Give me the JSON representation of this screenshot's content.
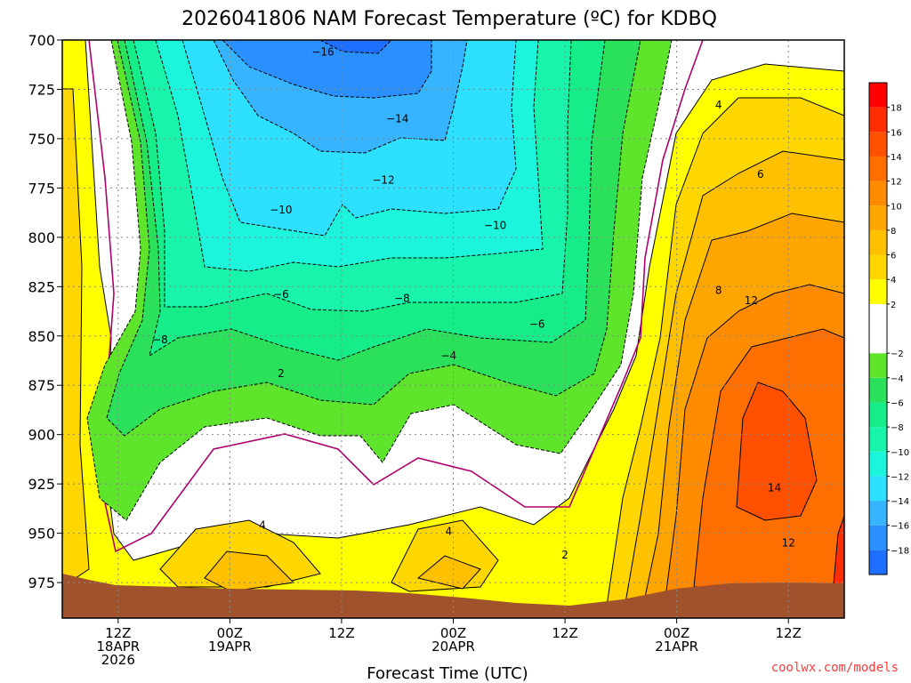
{
  "chart_data": {
    "type": "heatmap",
    "title": "2026041806 NAM Forecast Temperature (ºC) for KDBQ",
    "xlabel": "Forecast Time (UTC)",
    "ylabel": "",
    "credit": "coolwx.com/models",
    "y_axis": {
      "ticks": [
        700,
        725,
        750,
        775,
        800,
        825,
        850,
        875,
        900,
        925,
        950,
        975
      ],
      "ylim": [
        700,
        993
      ],
      "inverted": true,
      "unit": "hPa"
    },
    "x_axis": {
      "ticks": [
        {
          "t": 6,
          "lines": [
            "12Z",
            "18APR",
            "2026"
          ]
        },
        {
          "t": 18,
          "lines": [
            "00Z",
            "19APR"
          ]
        },
        {
          "t": 30,
          "lines": [
            "12Z"
          ]
        },
        {
          "t": 42,
          "lines": [
            "00Z",
            "20APR"
          ]
        },
        {
          "t": 54,
          "lines": [
            "12Z"
          ]
        },
        {
          "t": 66,
          "lines": [
            "00Z",
            "21APR"
          ]
        },
        {
          "t": 78,
          "lines": [
            "12Z"
          ]
        }
      ],
      "xlim": [
        0,
        84
      ],
      "unit": "forecast hour"
    },
    "legend": {
      "placement": "right",
      "levels": [
        -20,
        -18,
        -16,
        -14,
        -12,
        -10,
        -8,
        -6,
        -4,
        -2,
        2,
        4,
        6,
        8,
        10,
        12,
        14,
        16,
        18,
        20
      ],
      "labels": [
        -18,
        -16,
        -14,
        -12,
        -10,
        -8,
        -6,
        -4,
        -2,
        2,
        4,
        6,
        8,
        10,
        12,
        14,
        16,
        18
      ],
      "colors": [
        "#1f6fff",
        "#2a90ff",
        "#36b4ff",
        "#2ee0ff",
        "#1cf5dc",
        "#18f4ac",
        "#16ec88",
        "#2be05b",
        "#5fe42c",
        "#ffffff",
        "#ffff00",
        "#ffd700",
        "#ffc000",
        "#ffa500",
        "#ff8c00",
        "#ff6f00",
        "#ff5000",
        "#ff2d00",
        "#ff0000"
      ]
    },
    "contour_labels": [
      {
        "t": 28.0,
        "p": 706,
        "value": "−16"
      },
      {
        "t": 36.0,
        "p": 740,
        "value": "−14"
      },
      {
        "t": 34.5,
        "p": 771,
        "value": "−12"
      },
      {
        "t": 23.5,
        "p": 786,
        "value": "−10"
      },
      {
        "t": 46.5,
        "p": 794,
        "value": "−10"
      },
      {
        "t": 23.5,
        "p": 829,
        "value": "−6"
      },
      {
        "t": 36.5,
        "p": 831,
        "value": "−8"
      },
      {
        "t": 10.5,
        "p": 852,
        "value": "−8"
      },
      {
        "t": 51.0,
        "p": 844,
        "value": "−6"
      },
      {
        "t": 41.5,
        "p": 860,
        "value": "−4"
      },
      {
        "t": 23.5,
        "p": 869,
        "value": "2"
      },
      {
        "t": 21.5,
        "p": 946,
        "value": "4"
      },
      {
        "t": 41.5,
        "p": 949,
        "value": "4"
      },
      {
        "t": 54.0,
        "p": 961,
        "value": "2"
      },
      {
        "t": 70.5,
        "p": 733,
        "value": "4"
      },
      {
        "t": 75.0,
        "p": 768,
        "value": "6"
      },
      {
        "t": 70.5,
        "p": 827,
        "value": "8"
      },
      {
        "t": 74.0,
        "p": 832,
        "value": "12"
      },
      {
        "t": 76.5,
        "p": 927,
        "value": "14"
      },
      {
        "t": 78.0,
        "p": 955,
        "value": "12"
      }
    ]
  }
}
